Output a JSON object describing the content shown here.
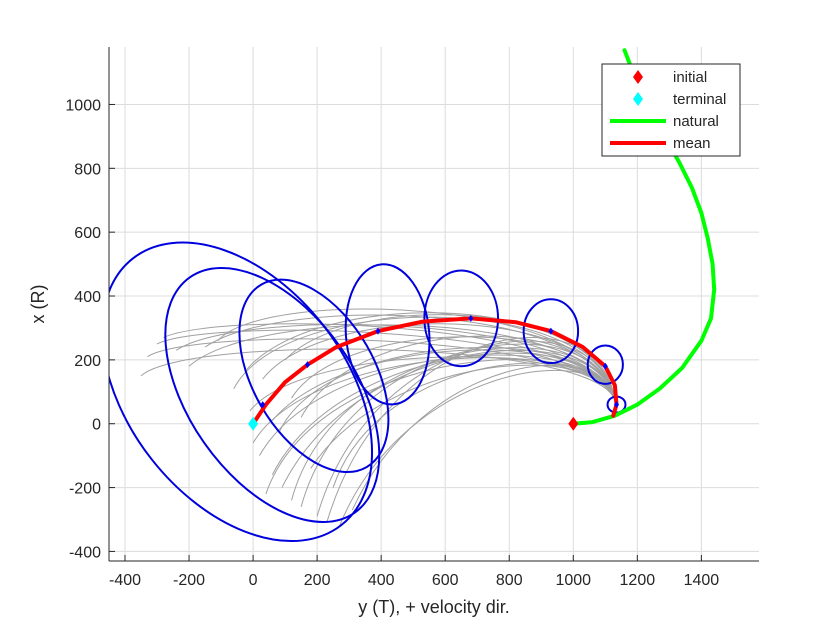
{
  "chart_data": {
    "type": "line",
    "title": "",
    "xlabel": "y (T), + velocity dir.",
    "ylabel": "x (R)",
    "xlim": [
      -450,
      1580
    ],
    "ylim": [
      -430,
      1180
    ],
    "xticks": [
      "-400",
      "-200",
      "0",
      "200",
      "400",
      "600",
      "800",
      "1000",
      "1200",
      "1400"
    ],
    "xtick_values": [
      -400,
      -200,
      0,
      200,
      400,
      600,
      800,
      1000,
      1200,
      1400
    ],
    "yticks": [
      "-400",
      "-200",
      "0",
      "200",
      "400",
      "600",
      "800",
      "1000"
    ],
    "ytick_values": [
      -400,
      -200,
      0,
      200,
      400,
      600,
      800,
      1000
    ],
    "grid": true,
    "legend": {
      "placement": "top-right",
      "entries": [
        {
          "label": "initial",
          "marker": "diamond",
          "color": "#ff0000"
        },
        {
          "label": "terminal",
          "marker": "diamond",
          "color": "#00ffff"
        },
        {
          "label": "natural",
          "marker": "line",
          "color": "#00ff00"
        },
        {
          "label": "mean",
          "marker": "line",
          "color": "#ff0000"
        }
      ]
    },
    "series": [
      {
        "name": "natural",
        "color": "#00ff00",
        "x": [
          1000,
          1060,
          1130,
          1200,
          1270,
          1340,
          1400,
          1430,
          1440,
          1435,
          1420,
          1400,
          1370,
          1330,
          1290,
          1250,
          1210,
          1160
        ],
        "y": [
          0,
          5,
          25,
          60,
          110,
          175,
          260,
          330,
          420,
          500,
          580,
          660,
          740,
          820,
          890,
          960,
          1040,
          1170
        ]
      },
      {
        "name": "mean",
        "color": "#ff0000",
        "x": [
          0,
          40,
          100,
          170,
          260,
          390,
          530,
          680,
          820,
          930,
          1030,
          1100,
          1130,
          1135,
          1125
        ],
        "y": [
          0,
          60,
          130,
          185,
          240,
          290,
          320,
          330,
          318,
          290,
          240,
          180,
          120,
          60,
          25
        ]
      }
    ],
    "markers": [
      {
        "name": "initial",
        "x": 1000,
        "y": 0,
        "color": "#ff0000"
      },
      {
        "name": "terminal",
        "x": 0,
        "y": 0,
        "color": "#00ffff"
      }
    ],
    "mean_points": [
      {
        "x": 0,
        "y": 0
      },
      {
        "x": 30,
        "y": 60
      },
      {
        "x": 170,
        "y": 185
      },
      {
        "x": 390,
        "y": 290
      },
      {
        "x": 680,
        "y": 330
      },
      {
        "x": 930,
        "y": 290
      },
      {
        "x": 1100,
        "y": 180
      },
      {
        "x": 1135,
        "y": 60
      }
    ],
    "ellipses": [
      {
        "cx": 1135,
        "cy": 60,
        "rx": 28,
        "ry": 25,
        "angle": 0
      },
      {
        "cx": 1100,
        "cy": 185,
        "rx": 55,
        "ry": 60,
        "angle": 0
      },
      {
        "cx": 930,
        "cy": 290,
        "rx": 85,
        "ry": 100,
        "angle": 0
      },
      {
        "cx": 650,
        "cy": 330,
        "rx": 115,
        "ry": 150,
        "angle": 0
      },
      {
        "cx": 420,
        "cy": 280,
        "rx": 130,
        "ry": 220,
        "angle": -5
      },
      {
        "cx": 190,
        "cy": 150,
        "rx": 190,
        "ry": 330,
        "angle": -30
      },
      {
        "cx": 60,
        "cy": 90,
        "rx": 260,
        "ry": 450,
        "angle": -35
      },
      {
        "cx": -50,
        "cy": 100,
        "rx": 340,
        "ry": 530,
        "angle": -38
      }
    ],
    "monte_carlo_trajectories": {
      "color": "#a0a0a0",
      "start": {
        "x": 1130,
        "y": 70
      },
      "end_points": [
        [
          -350,
          150
        ],
        [
          -330,
          210
        ],
        [
          -300,
          250
        ],
        [
          -280,
          270
        ],
        [
          -240,
          230
        ],
        [
          -200,
          180
        ],
        [
          -150,
          240
        ],
        [
          -110,
          260
        ],
        [
          -60,
          110
        ],
        [
          -10,
          40
        ],
        [
          0,
          -60
        ],
        [
          20,
          -100
        ],
        [
          60,
          -160
        ],
        [
          90,
          -200
        ],
        [
          120,
          -240
        ],
        [
          150,
          -260
        ],
        [
          200,
          -290
        ],
        [
          230,
          -310
        ],
        [
          270,
          -320
        ],
        [
          310,
          -270
        ],
        [
          60,
          10
        ],
        [
          80,
          -30
        ],
        [
          120,
          80
        ],
        [
          150,
          20
        ],
        [
          30,
          140
        ],
        [
          100,
          200
        ],
        [
          -20,
          170
        ],
        [
          180,
          -140
        ],
        [
          250,
          -200
        ],
        [
          40,
          -220
        ]
      ]
    }
  }
}
